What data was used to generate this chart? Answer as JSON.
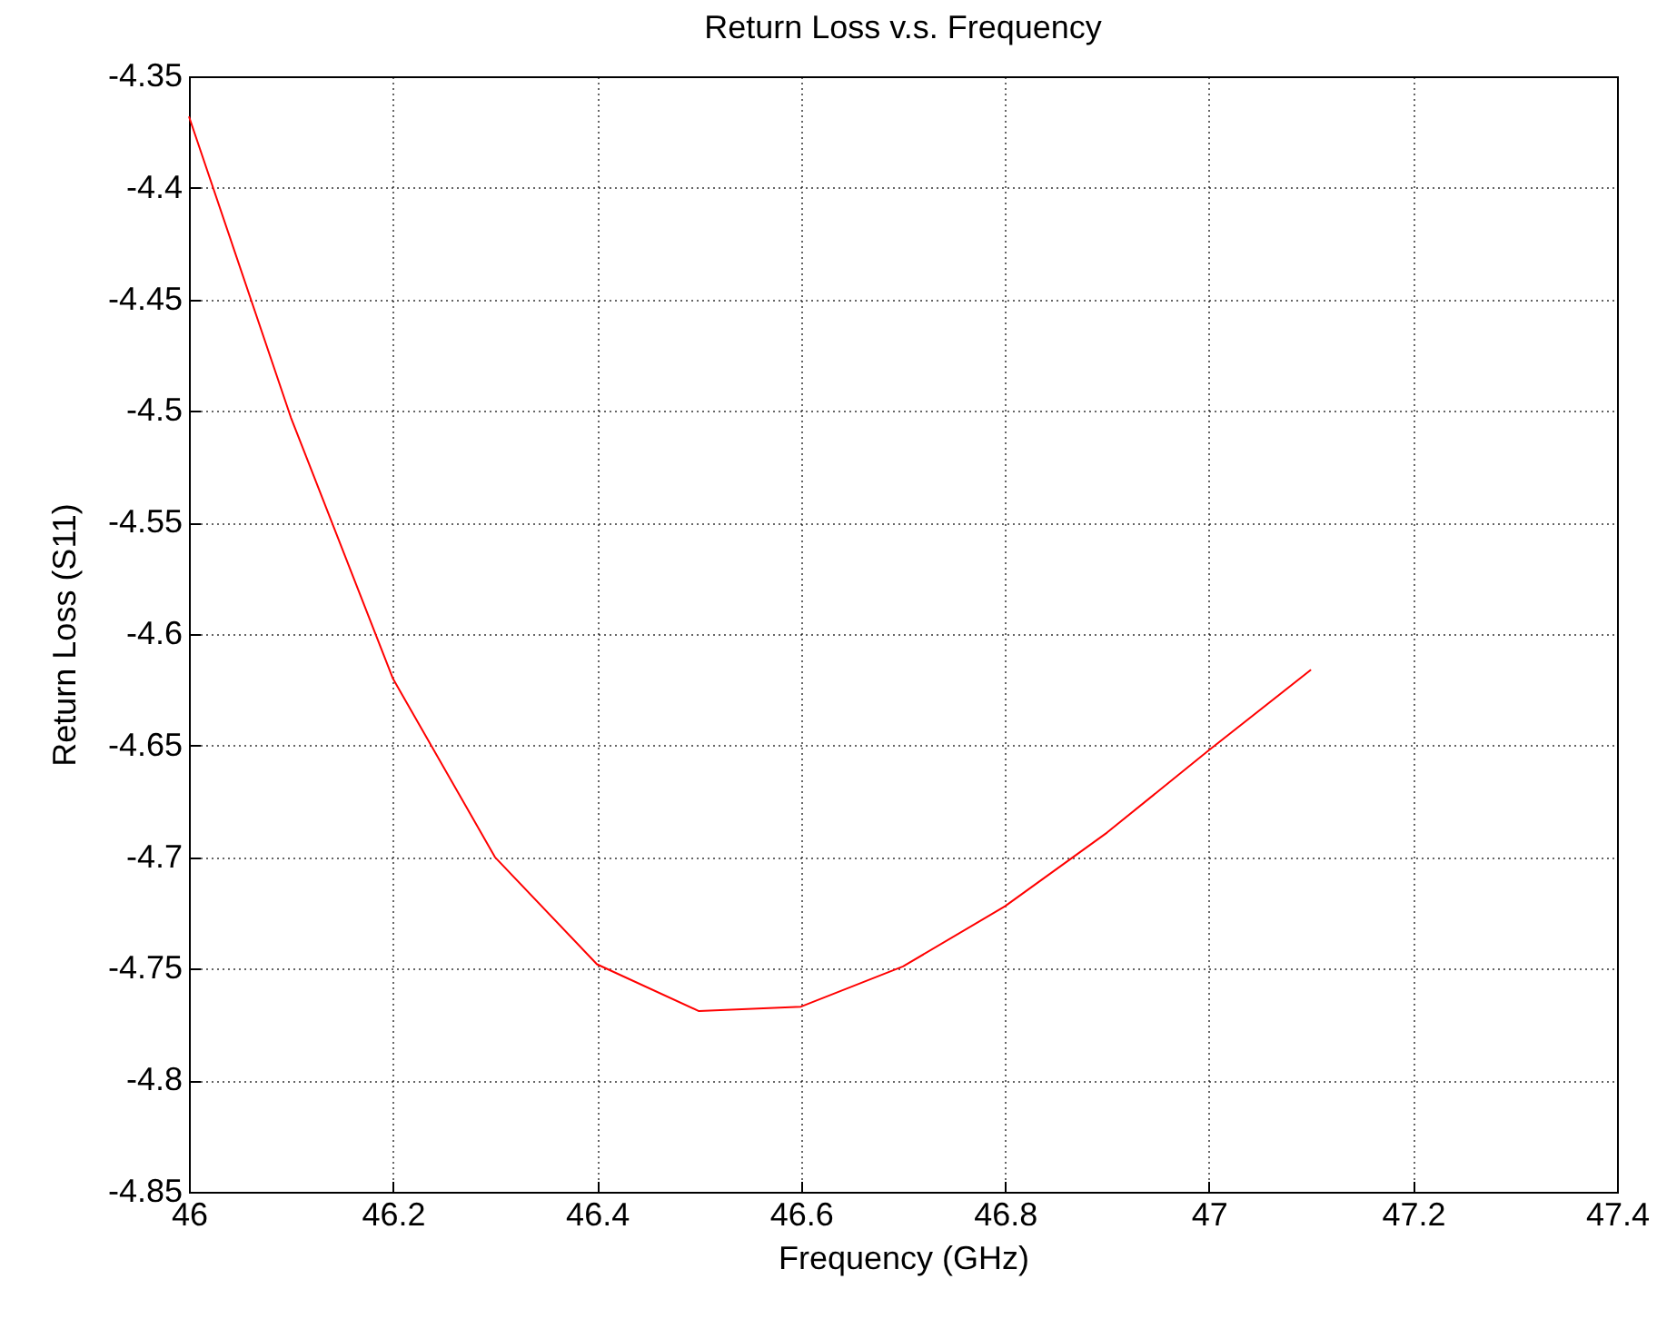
{
  "chart_data": {
    "type": "line",
    "title": "Return Loss v.s. Frequency",
    "xlabel": "Frequency (GHz)",
    "ylabel": "Return Loss (S11)",
    "x": [
      46,
      46.1,
      46.2,
      46.3,
      46.4,
      46.5,
      46.6,
      46.7,
      46.8,
      46.9,
      47,
      47.1
    ],
    "series": [
      {
        "color": "#ff0000",
        "values": [
          -4.368,
          -4.503,
          -4.62,
          -4.7,
          -4.748,
          -4.769,
          -4.767,
          -4.749,
          -4.722,
          -4.689,
          -4.652,
          -4.616
        ]
      }
    ],
    "xlim": [
      46,
      47.4
    ],
    "xticks": [
      46,
      46.2,
      46.4,
      46.6,
      46.8,
      47,
      47.2,
      47.4
    ],
    "ylim": [
      -4.85,
      -4.35
    ],
    "yticks": [
      -4.85,
      -4.8,
      -4.75,
      -4.7,
      -4.65,
      -4.6,
      -4.55,
      -4.5,
      -4.45,
      -4.4,
      -4.35
    ],
    "grid": true
  }
}
